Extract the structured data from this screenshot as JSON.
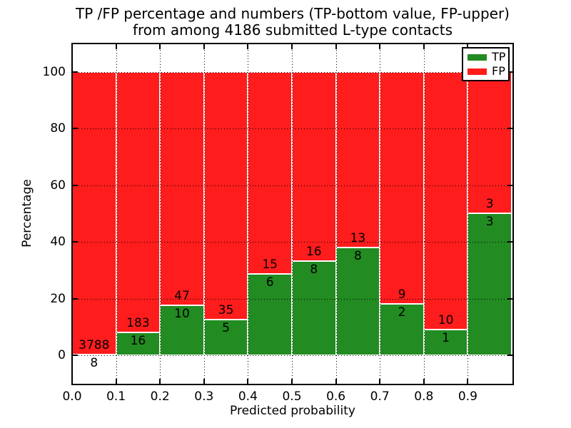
{
  "figure": {
    "title_line1": "TP /FP percentage and numbers (TP-bottom value, FP-upper)",
    "title_line2": "from among 4186 submitted L-type contacts",
    "xlabel": "Predicted probability",
    "ylabel": "Percentage",
    "total_contacts": 4186
  },
  "colors": {
    "tp_green": "#228B22",
    "fp_red": "#ff1c1c",
    "grid_black": "#000000",
    "background": "#ffffff"
  },
  "chart_data": {
    "type": "bar",
    "stacked": true,
    "title": "TP /FP percentage and numbers (TP-bottom value, FP-upper)\nfrom among 4186 submitted L-type contacts",
    "xlabel": "Predicted probability",
    "ylabel": "Percentage",
    "xlim": [
      0.0,
      1.0
    ],
    "ylim": [
      -10,
      110
    ],
    "grid": true,
    "grid_style": "dotted",
    "legend_position": "upper right",
    "x_tick_labels": [
      "0.0",
      "0.1",
      "0.2",
      "0.3",
      "0.4",
      "0.5",
      "0.6",
      "0.7",
      "0.8",
      "0.9"
    ],
    "y_tick_values": [
      0,
      20,
      40,
      60,
      80,
      100
    ],
    "y_tick_labels": [
      "0",
      "20",
      "40",
      "60",
      "80",
      "100"
    ],
    "bin_width": 0.1,
    "series": [
      {
        "name": "TP",
        "color": "#228B22"
      },
      {
        "name": "FP",
        "color": "#ff1c1c"
      }
    ],
    "bins": [
      {
        "x0": 0.0,
        "x1": 0.1,
        "tp_count": 8,
        "fp_count": 3788,
        "tp_pct": 0.21,
        "fp_pct": 99.79
      },
      {
        "x0": 0.1,
        "x1": 0.2,
        "tp_count": 16,
        "fp_count": 183,
        "tp_pct": 8.04,
        "fp_pct": 91.96
      },
      {
        "x0": 0.2,
        "x1": 0.3,
        "tp_count": 10,
        "fp_count": 47,
        "tp_pct": 17.54,
        "fp_pct": 82.46
      },
      {
        "x0": 0.3,
        "x1": 0.4,
        "tp_count": 5,
        "fp_count": 35,
        "tp_pct": 12.5,
        "fp_pct": 87.5
      },
      {
        "x0": 0.4,
        "x1": 0.5,
        "tp_count": 6,
        "fp_count": 15,
        "tp_pct": 28.57,
        "fp_pct": 71.43
      },
      {
        "x0": 0.5,
        "x1": 0.6,
        "tp_count": 8,
        "fp_count": 16,
        "tp_pct": 33.33,
        "fp_pct": 66.67
      },
      {
        "x0": 0.6,
        "x1": 0.7,
        "tp_count": 8,
        "fp_count": 13,
        "tp_pct": 38.1,
        "fp_pct": 61.9
      },
      {
        "x0": 0.7,
        "x1": 0.8,
        "tp_count": 2,
        "fp_count": 9,
        "tp_pct": 18.18,
        "fp_pct": 81.82
      },
      {
        "x0": 0.8,
        "x1": 0.9,
        "tp_count": 1,
        "fp_count": 10,
        "tp_pct": 9.09,
        "fp_pct": 90.91
      },
      {
        "x0": 0.9,
        "x1": 1.0,
        "tp_count": 3,
        "fp_count": 3,
        "tp_pct": 50.0,
        "fp_pct": 50.0
      }
    ]
  }
}
